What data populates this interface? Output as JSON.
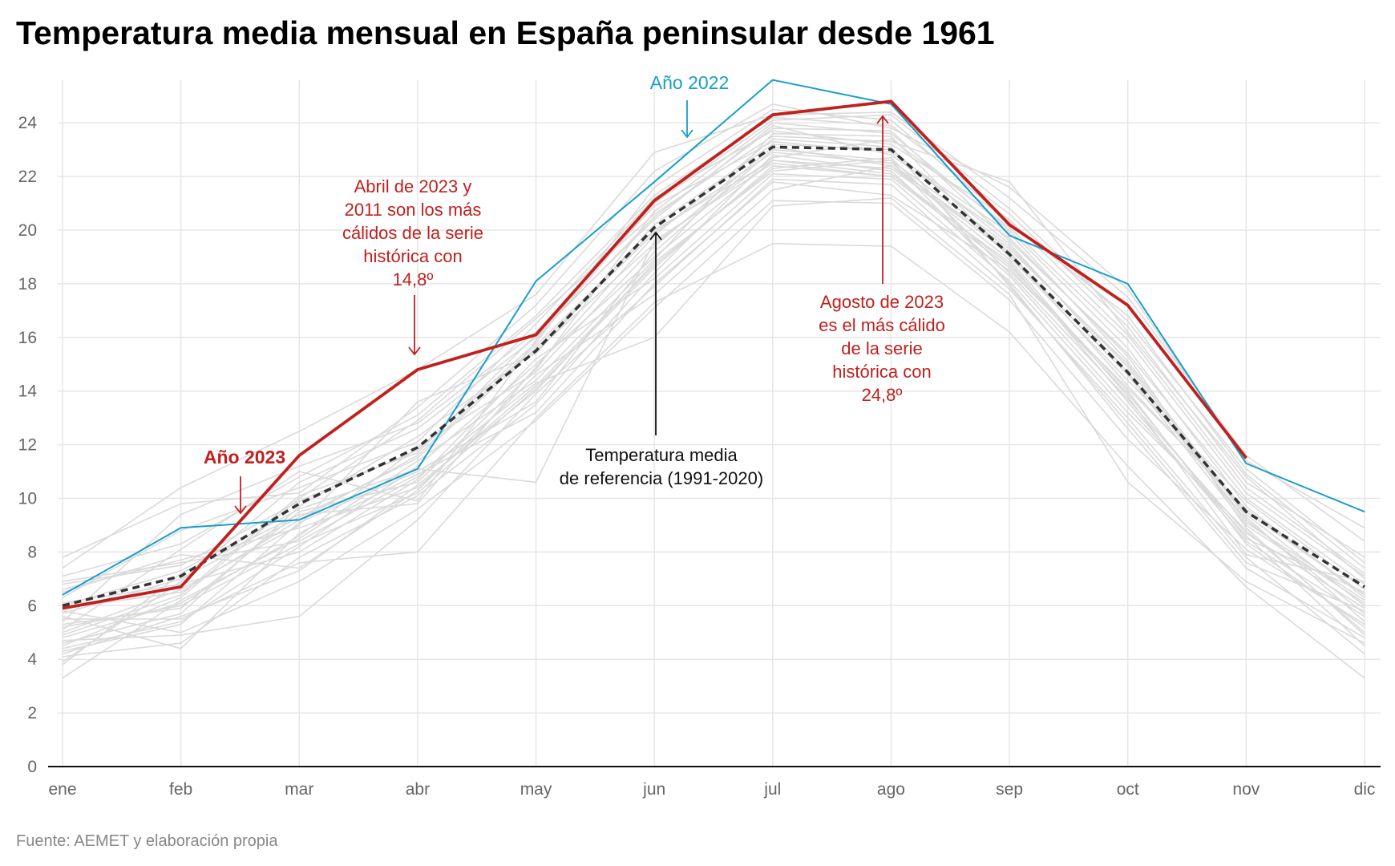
{
  "title": "Temperatura media mensual en España peninsular desde 1961",
  "source": "Fuente: AEMET y elaboración propia",
  "colors": {
    "year_2023": "#c0201e",
    "year_2022": "#1a9ec9",
    "reference": "#333333",
    "history": "#dadada",
    "grid": "#e6e6e6",
    "axis_text": "#666666"
  },
  "annotations": {
    "year_2023": "Año 2023",
    "year_2022": "Año 2022",
    "april": [
      "Abril de 2023 y",
      "2011 son los más",
      "cálidos de la serie",
      "histórica con",
      "14,8º"
    ],
    "august": [
      "Agosto de 2023",
      "es el más cálido",
      "de la serie",
      "histórica con",
      "24,8º"
    ],
    "reference": [
      "Temperatura media",
      "de referencia (1991-2020)"
    ]
  },
  "chart_data": {
    "type": "line",
    "title": "Temperatura media mensual en España peninsular desde 1961",
    "xlabel": "",
    "ylabel": "",
    "categories": [
      "ene",
      "feb",
      "mar",
      "abr",
      "may",
      "jun",
      "jul",
      "ago",
      "sep",
      "oct",
      "nov",
      "dic"
    ],
    "ylim": [
      0,
      25.5
    ],
    "yticks": [
      0,
      2,
      4,
      6,
      8,
      10,
      12,
      14,
      16,
      18,
      20,
      22,
      24
    ],
    "grid": true,
    "legend": "none",
    "series": [
      {
        "name": "Año 2023",
        "values": [
          5.9,
          6.7,
          11.6,
          14.8,
          16.1,
          21.1,
          24.3,
          24.8,
          20.2,
          17.2,
          11.5,
          null
        ],
        "style": "solid-thick"
      },
      {
        "name": "Año 2022",
        "values": [
          6.4,
          8.9,
          9.2,
          11.1,
          18.1,
          21.8,
          25.6,
          24.7,
          19.8,
          18.0,
          11.3,
          9.5
        ],
        "style": "solid-thin"
      },
      {
        "name": "Temperatura media de referencia (1991-2020)",
        "values": [
          6.0,
          7.1,
          9.8,
          11.9,
          15.5,
          20.1,
          23.1,
          23.0,
          19.1,
          14.7,
          9.5,
          6.7
        ],
        "style": "dashed"
      }
    ],
    "history_years": [
      [
        5.2,
        6.0,
        8.3,
        10.2,
        14.1,
        18.6,
        22.4,
        22.0,
        18.8,
        13.6,
        8.4,
        5.6
      ],
      [
        4.3,
        5.3,
        9.1,
        11.0,
        13.6,
        19.2,
        23.0,
        22.6,
        19.4,
        14.9,
        9.1,
        6.2
      ],
      [
        6.1,
        6.8,
        8.0,
        10.7,
        15.2,
        18.2,
        22.1,
        21.9,
        18.1,
        13.2,
        8.8,
        5.0
      ],
      [
        3.8,
        7.2,
        9.4,
        9.8,
        14.9,
        19.8,
        23.4,
        23.1,
        17.9,
        12.8,
        7.6,
        5.8
      ],
      [
        5.6,
        4.4,
        8.7,
        10.9,
        13.2,
        18.0,
        21.8,
        21.3,
        18.5,
        14.1,
        9.6,
        6.4
      ],
      [
        4.9,
        6.4,
        10.1,
        11.7,
        16.1,
        20.4,
        23.9,
        22.8,
        19.7,
        15.3,
        8.9,
        4.9
      ],
      [
        6.5,
        7.9,
        7.4,
        10.3,
        14.6,
        17.6,
        21.5,
        22.4,
        18.9,
        13.8,
        7.9,
        6.9
      ],
      [
        4.6,
        5.7,
        9.7,
        12.3,
        15.5,
        19.5,
        22.7,
        23.4,
        20.1,
        15.9,
        10.2,
        7.1
      ],
      [
        5.8,
        5.0,
        6.9,
        9.6,
        12.9,
        17.1,
        21.1,
        21.0,
        17.4,
        12.2,
        8.1,
        5.3
      ],
      [
        3.3,
        6.2,
        8.5,
        11.4,
        14.4,
        18.9,
        23.6,
        23.5,
        19.0,
        14.4,
        9.9,
        6.6
      ],
      [
        7.1,
        8.3,
        10.8,
        13.1,
        16.8,
        21.3,
        24.2,
        23.9,
        20.6,
        16.4,
        10.6,
        7.8
      ],
      [
        5.4,
        9.4,
        11.2,
        12.8,
        16.2,
        20.9,
        23.3,
        22.9,
        19.9,
        15.1,
        9.4,
        6.0
      ],
      [
        4.1,
        4.6,
        7.8,
        10.1,
        13.5,
        18.4,
        22.8,
        22.2,
        18.3,
        13.4,
        8.6,
        4.5
      ],
      [
        6.8,
        7.5,
        9.9,
        11.8,
        15.8,
        21.6,
        24.5,
        24.1,
        20.3,
        16.8,
        10.9,
        7.4
      ],
      [
        5.0,
        6.6,
        9.0,
        13.6,
        15.4,
        20.2,
        23.2,
        23.0,
        19.5,
        14.7,
        9.2,
        5.7
      ],
      [
        4.4,
        5.4,
        8.2,
        11.2,
        15.0,
        19.0,
        22.6,
        22.1,
        18.7,
        14.0,
        8.3,
        5.2
      ],
      [
        7.4,
        10.4,
        12.5,
        14.8,
        17.6,
        22.9,
        24.3,
        24.4,
        21.2,
        17.5,
        11.6,
        8.4
      ],
      [
        5.3,
        5.9,
        9.5,
        10.6,
        14.8,
        20.7,
        24.0,
        23.6,
        20.0,
        15.6,
        9.7,
        6.3
      ],
      [
        6.3,
        8.8,
        10.4,
        12.1,
        16.5,
        21.2,
        23.7,
        23.2,
        20.4,
        16.1,
        10.4,
        7.2
      ],
      [
        4.7,
        4.9,
        5.6,
        9.2,
        13.9,
        17.9,
        21.9,
        21.7,
        17.8,
        13.0,
        7.8,
        4.2
      ],
      [
        5.7,
        7.0,
        9.3,
        11.5,
        15.6,
        19.9,
        22.9,
        22.5,
        19.1,
        14.6,
        9.0,
        6.1
      ],
      [
        3.9,
        6.9,
        10.6,
        12.6,
        16.0,
        20.5,
        23.8,
        23.7,
        19.6,
        15.4,
        10.0,
        6.8
      ],
      [
        6.6,
        7.7,
        8.9,
        10.4,
        14.2,
        18.7,
        22.3,
        22.7,
        18.4,
        13.7,
        8.7,
        5.9
      ],
      [
        5.1,
        8.1,
        11.0,
        9.9,
        15.9,
        21.0,
        24.1,
        24.3,
        20.8,
        16.6,
        11.1,
        7.6
      ],
      [
        4.8,
        6.1,
        8.6,
        11.9,
        14.7,
        19.4,
        23.1,
        22.4,
        19.3,
        15.0,
        9.3,
        5.4
      ],
      [
        7.8,
        9.8,
        10.2,
        13.4,
        17.2,
        22.2,
        24.7,
        23.8,
        21.6,
        17.8,
        11.4,
        8.9
      ],
      [
        5.5,
        5.5,
        7.6,
        8.0,
        13.0,
        17.3,
        19.5,
        19.4,
        16.2,
        11.2,
        6.7,
        3.3
      ],
      [
        6.0,
        7.3,
        9.6,
        11.1,
        10.6,
        19.6,
        22.5,
        22.0,
        18.6,
        13.9,
        8.5,
        6.5
      ],
      [
        4.5,
        6.3,
        10.0,
        12.9,
        16.7,
        20.6,
        23.5,
        23.3,
        21.8,
        16.2,
        10.8,
        7.0
      ],
      [
        6.9,
        7.6,
        8.4,
        10.8,
        14.3,
        16.0,
        20.9,
        21.2,
        17.6,
        10.6,
        6.9,
        4.6
      ],
      [
        5.9,
        6.5,
        9.2,
        11.6,
        15.7,
        20.0,
        22.6,
        22.3,
        19.2,
        14.2,
        9.5,
        6.4
      ],
      [
        4.2,
        5.6,
        7.3,
        10.5,
        14.0,
        18.8,
        22.2,
        22.6,
        18.0,
        12.6,
        7.4,
        4.8
      ]
    ]
  }
}
